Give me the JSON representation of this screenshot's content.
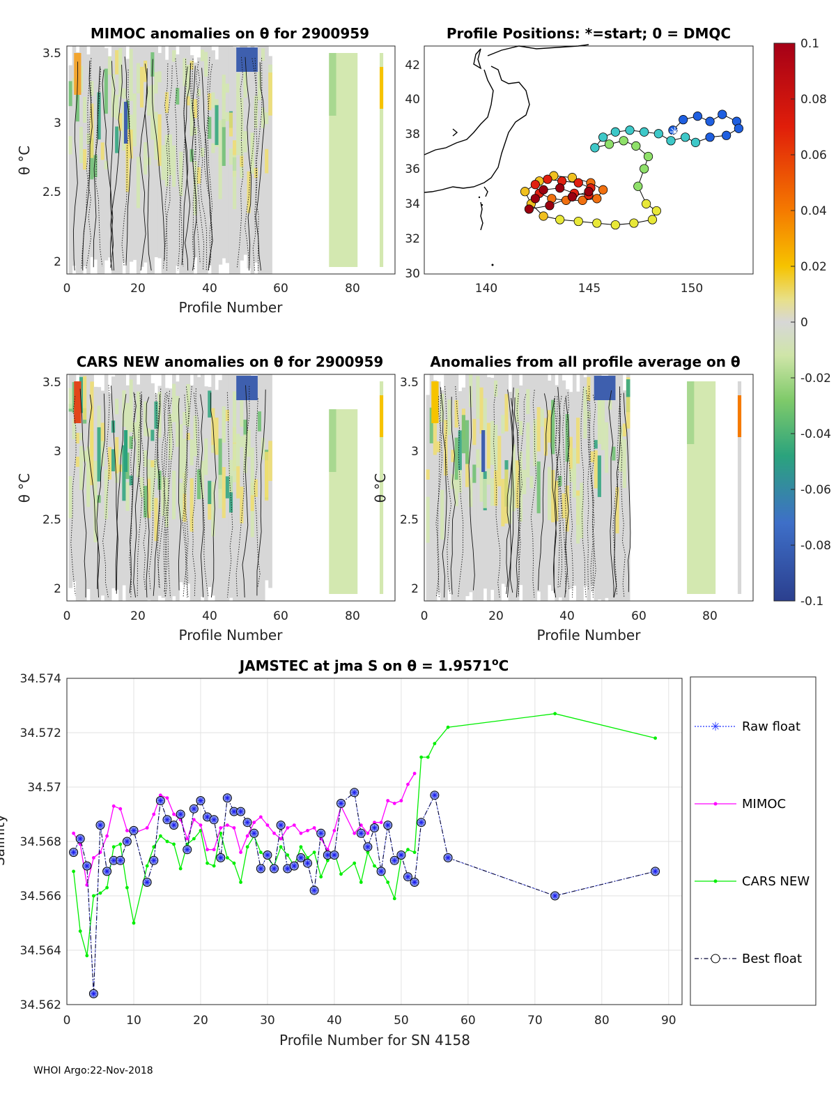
{
  "footer": "WHOI Argo:22-Nov-2018",
  "colors": {
    "mimoc": "#ff00ff",
    "cars": "#00ee00",
    "best": "#000033",
    "raw": "#2233ff",
    "marker_fill": "#8899ee",
    "bg_gray": "#d7d7d7"
  },
  "chart_data": [
    {
      "id": "mimoc_anom",
      "type": "heatmap",
      "title": "MIMOC anomalies on θ  for 2900959",
      "xlabel": "Profile Number",
      "ylabel": "θ °C",
      "xlim": [
        0,
        92
      ],
      "ylim": [
        1.92,
        3.54
      ],
      "xticks": [
        "0",
        "20",
        "40",
        "60",
        "80"
      ],
      "yticks": [
        "2",
        "2.5",
        "3",
        "3.5"
      ]
    },
    {
      "id": "positions",
      "type": "scatter",
      "title": "Profile Positions: *=start; 0 = DMQC",
      "xlim": [
        136.9,
        152.9
      ],
      "ylim": [
        30,
        43
      ],
      "xticks": [
        "140",
        "145",
        "150"
      ],
      "yticks": [
        "30",
        "32",
        "34",
        "36",
        "38",
        "40",
        "42"
      ],
      "track": [
        [
          149.0,
          38.2
        ],
        [
          149.5,
          38.8
        ],
        [
          150.2,
          39.0
        ],
        [
          150.8,
          38.7
        ],
        [
          151.4,
          39.1
        ],
        [
          152.1,
          38.7
        ],
        [
          152.2,
          38.3
        ],
        [
          151.6,
          37.9
        ],
        [
          150.8,
          37.8
        ],
        [
          150.1,
          37.5
        ],
        [
          149.6,
          37.8
        ],
        [
          148.9,
          37.6
        ],
        [
          148.3,
          38.0
        ],
        [
          147.6,
          38.1
        ],
        [
          146.9,
          38.2
        ],
        [
          146.2,
          38.1
        ],
        [
          145.6,
          37.8
        ],
        [
          145.2,
          37.2
        ],
        [
          145.9,
          37.4
        ],
        [
          146.6,
          37.6
        ],
        [
          147.2,
          37.3
        ],
        [
          147.8,
          36.7
        ],
        [
          147.6,
          36.0
        ],
        [
          147.3,
          35.0
        ],
        [
          147.7,
          34.0
        ],
        [
          148.2,
          33.6
        ],
        [
          148.0,
          33.1
        ],
        [
          147.1,
          32.9
        ],
        [
          146.2,
          32.8
        ],
        [
          145.3,
          32.9
        ],
        [
          144.4,
          33.0
        ],
        [
          143.5,
          33.1
        ],
        [
          142.7,
          33.3
        ],
        [
          142.1,
          34.0
        ],
        [
          141.8,
          34.7
        ],
        [
          142.5,
          35.3
        ],
        [
          143.2,
          35.6
        ],
        [
          144.1,
          35.5
        ],
        [
          145.0,
          35.2
        ],
        [
          145.6,
          34.8
        ],
        [
          145.3,
          34.3
        ],
        [
          144.6,
          34.2
        ],
        [
          143.8,
          34.2
        ],
        [
          143.1,
          34.3
        ],
        [
          142.5,
          34.6
        ],
        [
          142.3,
          35.1
        ],
        [
          142.9,
          35.4
        ],
        [
          143.6,
          35.3
        ],
        [
          144.4,
          35.2
        ],
        [
          145.0,
          34.9
        ],
        [
          144.9,
          34.5
        ],
        [
          144.2,
          34.6
        ],
        [
          143.5,
          34.9
        ],
        [
          142.7,
          34.8
        ],
        [
          142.3,
          34.3
        ],
        [
          142.0,
          33.7
        ],
        [
          143.0,
          33.9
        ],
        [
          144.1,
          34.4
        ],
        [
          144.9,
          34.7
        ]
      ],
      "start": [
        149.1,
        38.1
      ]
    },
    {
      "id": "cars_anom",
      "type": "heatmap",
      "title": "CARS NEW anomalies on θ for 2900959",
      "xlabel": "Profile Number",
      "ylabel": "θ °C",
      "xlim": [
        0,
        92
      ],
      "ylim": [
        1.92,
        3.54
      ],
      "xticks": [
        "0",
        "20",
        "40",
        "60",
        "80"
      ],
      "yticks": [
        "2",
        "2.5",
        "3",
        "3.5"
      ]
    },
    {
      "id": "avg_anom",
      "type": "heatmap",
      "title": "Anomalies from all profile average on θ",
      "xlabel": "Profile Number",
      "ylabel": "θ °C",
      "xlim": [
        0,
        92
      ],
      "ylim": [
        1.92,
        3.54
      ],
      "xticks": [
        "0",
        "20",
        "40",
        "60",
        "80"
      ],
      "yticks": [
        "2",
        "2.5",
        "3",
        "3.5"
      ]
    },
    {
      "id": "colorbar",
      "type": "heatmap",
      "range": [
        -0.1,
        0.1
      ],
      "ticks": [
        "0.1",
        "0.08",
        "0.06",
        "0.04",
        "0.02",
        "0",
        "-0.02",
        "-0.04",
        "-0.06",
        "-0.08",
        "-0.1"
      ]
    },
    {
      "id": "salinity",
      "type": "line",
      "title_main": "JAMSTEC at jma S on θ = 1.9571",
      "title_sup": "o",
      "title_unit": "C",
      "xlabel": "Profile Number for SN 4158",
      "ylabel": "Salinity",
      "xlim": [
        0,
        92
      ],
      "ylim": [
        34.562,
        34.574
      ],
      "xticks": [
        0,
        10,
        20,
        30,
        40,
        50,
        60,
        70,
        80,
        90
      ],
      "yticks": [
        34.562,
        34.564,
        34.566,
        34.568,
        34.57,
        34.572,
        34.574
      ],
      "ytick_labels": [
        "34.562",
        "34.564",
        "34.566",
        "34.568",
        "34.57",
        "34.572",
        "34.574"
      ],
      "legend": [
        "Raw float",
        "MIMOC",
        "CARS NEW",
        "Best float"
      ],
      "series": [
        {
          "name": "Best float",
          "x": [
            1,
            2,
            3,
            4,
            5,
            6,
            7,
            8,
            9,
            10,
            12,
            13,
            14,
            15,
            16,
            17,
            18,
            19,
            20,
            21,
            22,
            23,
            24,
            25,
            26,
            27,
            28,
            29,
            30,
            31,
            32,
            33,
            34,
            35,
            36,
            37,
            38,
            39,
            40,
            41,
            43,
            44,
            45,
            46,
            47,
            48,
            49,
            50,
            51,
            52,
            53,
            55,
            57,
            73,
            88
          ],
          "y": [
            34.5676,
            34.5681,
            34.5671,
            34.5624,
            34.5686,
            34.5669,
            34.5673,
            34.5673,
            34.568,
            34.5684,
            34.5665,
            34.5673,
            34.5695,
            34.5688,
            34.5686,
            34.569,
            34.5677,
            34.5692,
            34.5695,
            34.5689,
            34.5688,
            34.5674,
            34.5696,
            34.5691,
            34.5691,
            34.5687,
            34.5683,
            34.567,
            34.5675,
            34.567,
            34.5686,
            34.567,
            34.5671,
            34.5674,
            34.5672,
            34.5662,
            34.5683,
            34.5675,
            34.5675,
            34.5694,
            34.5698,
            34.5683,
            34.5678,
            34.5685,
            34.5669,
            34.5686,
            34.5673,
            34.5675,
            34.5667,
            34.5665,
            34.5687,
            34.5697,
            34.5674,
            34.566,
            34.5669
          ]
        },
        {
          "name": "MIMOC",
          "x": [
            1,
            2,
            3,
            4,
            5,
            6,
            7,
            8,
            9,
            10,
            12,
            13,
            14,
            15,
            16,
            17,
            18,
            19,
            20,
            21,
            22,
            23,
            24,
            25,
            26,
            27,
            28,
            29,
            30,
            31,
            32,
            33,
            34,
            35,
            36,
            37,
            38,
            39,
            40,
            41,
            43,
            44,
            45,
            46,
            47,
            48,
            49,
            50,
            51,
            52
          ],
          "y": [
            34.5683,
            34.5679,
            34.5664,
            34.5674,
            34.5676,
            34.5682,
            34.5693,
            34.5692,
            34.5684,
            34.5683,
            34.5685,
            34.569,
            34.5697,
            34.5696,
            34.569,
            34.5688,
            34.5681,
            34.5688,
            34.5686,
            34.5677,
            34.5677,
            34.5685,
            34.5686,
            34.5685,
            34.5676,
            34.5682,
            34.5687,
            34.5689,
            34.5686,
            34.5683,
            34.5681,
            34.5685,
            34.5686,
            34.5683,
            34.5684,
            34.5685,
            34.5681,
            34.5677,
            34.5684,
            34.5693,
            34.5683,
            34.5686,
            34.5683,
            34.5687,
            34.5687,
            34.5695,
            34.5694,
            34.5695,
            34.5701,
            34.5705
          ]
        },
        {
          "name": "CARS NEW",
          "x": [
            1,
            2,
            3,
            4,
            5,
            6,
            7,
            8,
            9,
            10,
            12,
            13,
            14,
            15,
            16,
            17,
            18,
            19,
            20,
            21,
            22,
            23,
            24,
            25,
            26,
            27,
            28,
            29,
            30,
            31,
            32,
            33,
            34,
            35,
            36,
            37,
            38,
            39,
            40,
            41,
            43,
            44,
            45,
            46,
            47,
            48,
            49,
            50,
            51,
            52,
            53,
            54,
            55,
            57,
            73,
            88
          ],
          "y": [
            34.5669,
            34.5647,
            34.5638,
            34.566,
            34.5661,
            34.5663,
            34.5678,
            34.5679,
            34.5663,
            34.565,
            34.5671,
            34.5678,
            34.5682,
            34.568,
            34.5679,
            34.567,
            34.5679,
            34.5681,
            34.5684,
            34.5672,
            34.5671,
            34.5683,
            34.5674,
            34.5672,
            34.5665,
            34.5678,
            34.5682,
            34.5676,
            34.5674,
            34.5671,
            34.5678,
            34.5675,
            34.5671,
            34.5678,
            34.5674,
            34.5676,
            34.5667,
            34.5673,
            34.5676,
            34.5668,
            34.5672,
            34.5665,
            34.5676,
            34.5671,
            34.5669,
            34.5665,
            34.5659,
            34.5674,
            34.5677,
            34.5676,
            34.5711,
            34.5711,
            34.5716,
            34.5722,
            34.5727,
            34.5718
          ]
        }
      ]
    }
  ]
}
